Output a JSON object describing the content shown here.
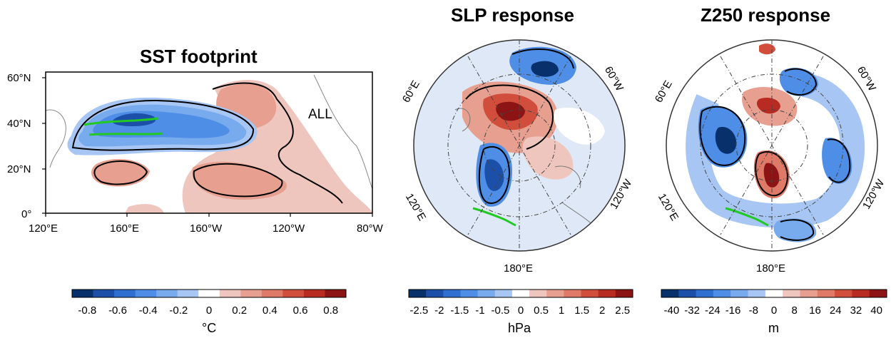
{
  "chart_data": [
    {
      "type": "heatmap",
      "title": "SST footprint",
      "annotation": "ALL",
      "x_ticks": [
        "120°E",
        "160°E",
        "160°W",
        "120°W",
        "80°W"
      ],
      "y_ticks": [
        "60°N",
        "40°N",
        "20°N",
        "0°"
      ],
      "x_range": [
        "120°E",
        "80°W"
      ],
      "y_range": [
        "0°",
        "60°N"
      ],
      "colorbar": {
        "unit": "°C",
        "labels": [
          "-0.8",
          "-0.6",
          "-0.4",
          "-0.2",
          "0",
          "0.2",
          "0.4",
          "0.6",
          "0.8"
        ],
        "range": [
          -0.9,
          0.9
        ]
      }
    },
    {
      "type": "heatmap",
      "title": "SLP response",
      "projection": "polar stereographic (North Pole)",
      "lon_labels": [
        "60°E",
        "60°W",
        "120°E",
        "120°W",
        "180°E"
      ],
      "colorbar": {
        "unit": "hPa",
        "labels": [
          "-2.5",
          "-2",
          "-1.5",
          "-1",
          "-0.5",
          "0",
          "0.5",
          "1",
          "1.5",
          "2",
          "2.5"
        ],
        "range": [
          -2.75,
          2.75
        ]
      }
    },
    {
      "type": "heatmap",
      "title": "Z250 response",
      "projection": "polar stereographic (North Pole)",
      "lon_labels": [
        "60°E",
        "60°W",
        "120°E",
        "120°W",
        "180°E"
      ],
      "colorbar": {
        "unit": "m",
        "labels": [
          "-40",
          "-32",
          "-24",
          "-16",
          "-8",
          "0",
          "8",
          "16",
          "24",
          "32",
          "40"
        ],
        "range": [
          -44,
          44
        ]
      }
    }
  ],
  "colors": {
    "palette": [
      "#08306b",
      "#1c4fa8",
      "#2f6fd0",
      "#4f8ee6",
      "#78aaee",
      "#a7c6f3",
      "#ffffff",
      "#efc6bd",
      "#e79f90",
      "#de7a67",
      "#d24e3c",
      "#b82b22",
      "#8c1414"
    ],
    "contour": "#000000",
    "storm_track": "#22c922"
  }
}
